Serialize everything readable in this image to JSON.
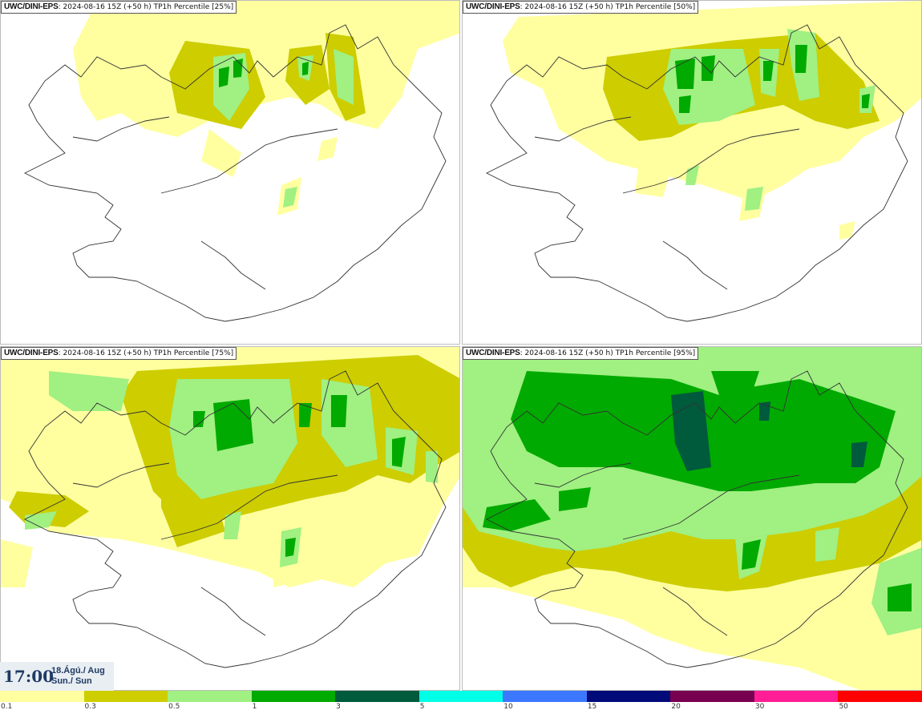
{
  "panels": [
    {
      "model": "UWC/DINI-EPS",
      "run": "2024-08-16 15Z (+50 h)",
      "field": "TP1h Percentile [25%]"
    },
    {
      "model": "UWC/DINI-EPS",
      "run": "2024-08-16 15Z (+50 h)",
      "field": "TP1h Percentile [50%]"
    },
    {
      "model": "UWC/DINI-EPS",
      "run": "2024-08-16 15Z (+50 h)",
      "field": "TP1h Percentile [75%]"
    },
    {
      "model": "UWC/DINI-EPS",
      "run": "2024-08-16 15Z (+50 h)",
      "field": "TP1h Percentile [95%]"
    }
  ],
  "valid_time": {
    "clock": "17:00",
    "date": "18.Ágú./ Aug",
    "day": "Sun./ Sun"
  },
  "colorbar": {
    "ticks": [
      "0.1",
      "0.3",
      "0.5",
      "1",
      "3",
      "5",
      "10",
      "15",
      "20",
      "30",
      "50"
    ],
    "colors": [
      "#ffffa0",
      "#cdcd00",
      "#a0f082",
      "#00aa00",
      "#005a3c",
      "#00ffe6",
      "#3c78ff",
      "#000a78",
      "#780050",
      "#ff1e96",
      "#ff0000"
    ]
  },
  "map_colors": {
    "light": "#ffffa0",
    "olive": "#cdcd00",
    "pale_green": "#a0f082",
    "green": "#00aa00",
    "dark_green": "#005a3c",
    "coast": "#333333"
  }
}
